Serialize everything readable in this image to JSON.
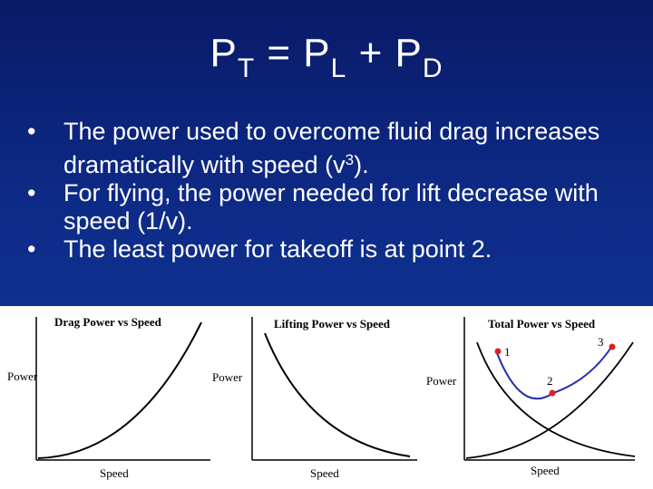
{
  "slide": {
    "title": {
      "main": "P",
      "sub1": "T",
      "eq": " = P",
      "sub2": "L",
      "plus": " + P",
      "sub3": "D"
    },
    "bullets": [
      {
        "text_before": "The power used to overcome fluid drag increases dramatically with speed (v",
        "sup": "3",
        "text_after": ")."
      },
      {
        "text_before": "For flying, the power needed for lift decrease with speed (1/v).",
        "sup": "",
        "text_after": ""
      },
      {
        "text_before": "The least power for takeoff is at point 2.",
        "sup": "",
        "text_after": ""
      }
    ],
    "bullet_glyph": "•"
  },
  "panels": [
    {
      "title": "Drag Power vs Speed",
      "ylabel": "Power",
      "xlabel": "Speed"
    },
    {
      "title": "Lifting Power vs Speed",
      "ylabel": "Power",
      "xlabel": "Speed"
    },
    {
      "title": "Total Power vs Speed",
      "ylabel": "Power",
      "xlabel": "Speed",
      "points": [
        "1",
        "2",
        "3"
      ]
    }
  ],
  "colors": {
    "background_top": "#0a1a66",
    "background_bottom": "#113b9c",
    "text": "#ffffff",
    "curve": "#000000",
    "total_curve": "#1f2fb0",
    "point": "#e02020",
    "point_label": "#000000"
  }
}
